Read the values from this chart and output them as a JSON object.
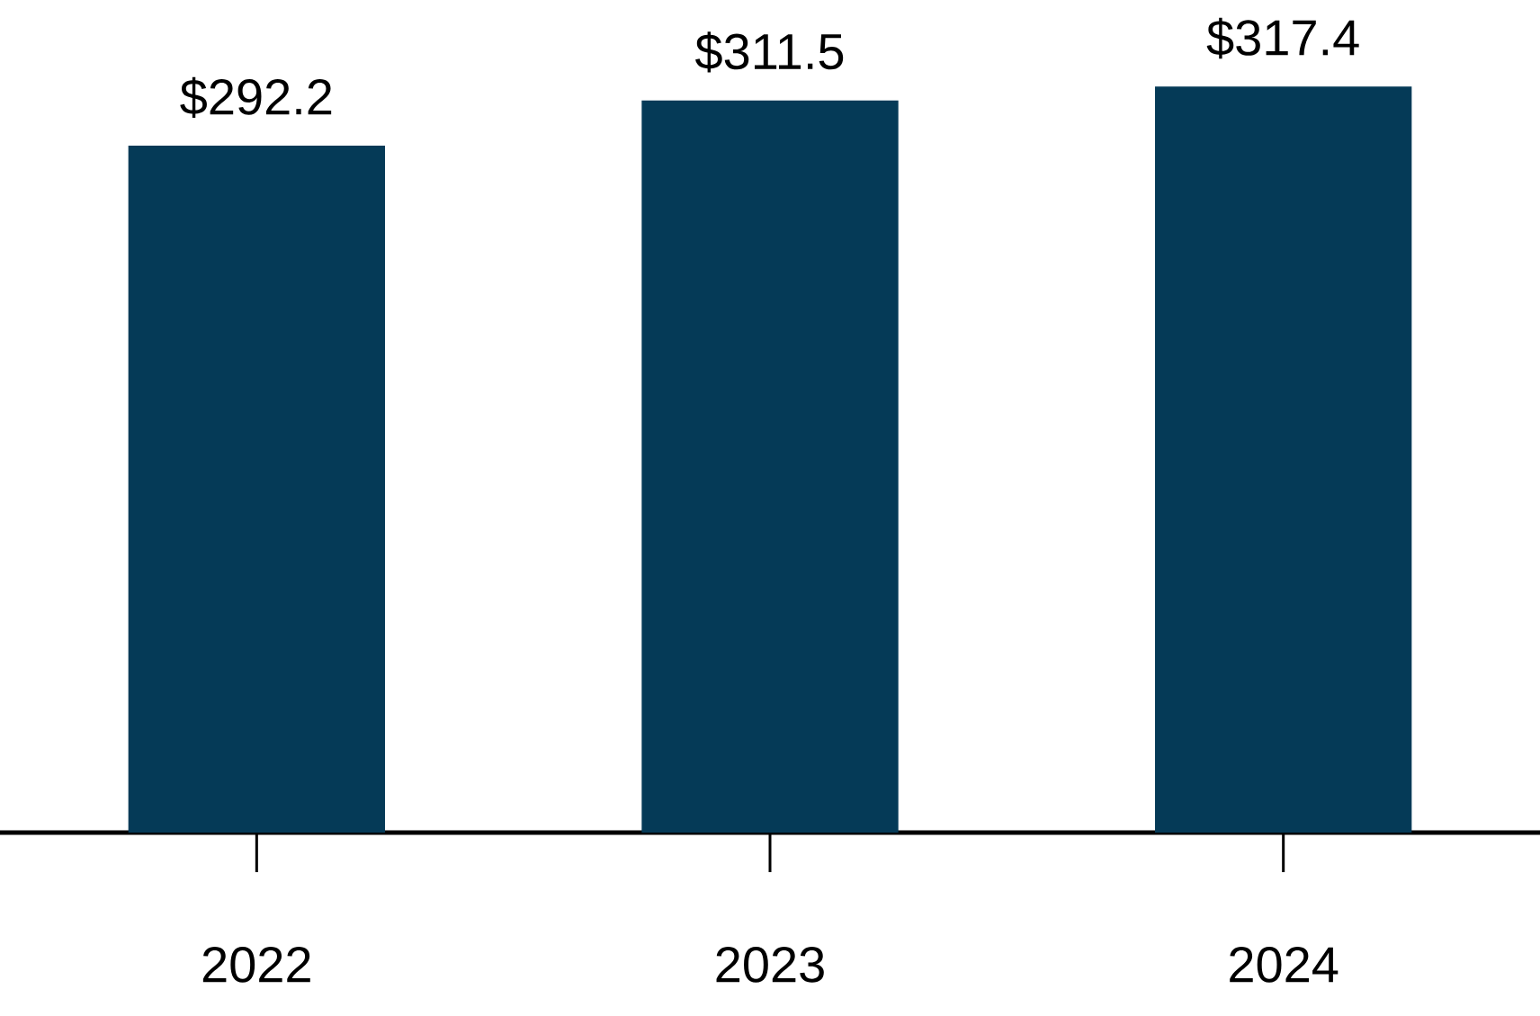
{
  "chart_data": {
    "type": "bar",
    "categories": [
      "2022",
      "2023",
      "2024"
    ],
    "values": [
      292.2,
      311.5,
      317.4
    ],
    "value_labels": [
      "$292.2",
      "$311.5",
      "$317.4"
    ],
    "color": "#053a57"
  }
}
